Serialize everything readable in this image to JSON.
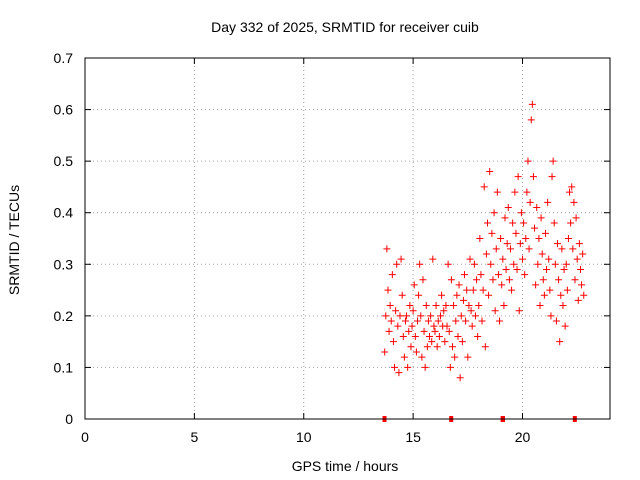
{
  "chart_data": {
    "type": "scatter",
    "title": "Day 332 of 2025, SRMTID for receiver cuib",
    "xlabel": "GPS time / hours",
    "ylabel": "SRMTID / TECUs",
    "xlim": [
      0,
      24
    ],
    "ylim": [
      0,
      0.7
    ],
    "x_ticks": [
      0,
      5,
      10,
      15,
      20
    ],
    "y_ticks": [
      0,
      0.1,
      0.2,
      0.3,
      0.4,
      0.5,
      0.6,
      0.7
    ],
    "x_tick_labels": [
      "0",
      "5",
      "10",
      "15",
      "20"
    ],
    "y_tick_labels": [
      "0",
      "0.1",
      "0.2",
      "0.3",
      "0.4",
      "0.5",
      "0.6",
      "0.7"
    ],
    "grid": true,
    "marker": "+",
    "color": "#ff0000",
    "series": [
      {
        "name": "SRMTID",
        "points": [
          [
            13.7,
            0.13
          ],
          [
            13.75,
            0.2
          ],
          [
            13.8,
            0.33
          ],
          [
            13.85,
            0.25
          ],
          [
            13.9,
            0.17
          ],
          [
            13.95,
            0.22
          ],
          [
            14.0,
            0.19
          ],
          [
            14.05,
            0.28
          ],
          [
            14.1,
            0.15
          ],
          [
            14.15,
            0.1
          ],
          [
            14.2,
            0.21
          ],
          [
            14.25,
            0.3
          ],
          [
            14.3,
            0.18
          ],
          [
            14.35,
            0.09
          ],
          [
            14.4,
            0.2
          ],
          [
            14.45,
            0.31
          ],
          [
            14.5,
            0.24
          ],
          [
            14.55,
            0.16
          ],
          [
            14.6,
            0.12
          ],
          [
            14.65,
            0.19
          ],
          [
            14.7,
            0.2
          ],
          [
            14.75,
            0.1
          ],
          [
            14.8,
            0.17
          ],
          [
            14.85,
            0.22
          ],
          [
            14.9,
            0.14
          ],
          [
            14.95,
            0.18
          ],
          [
            15.0,
            0.21
          ],
          [
            15.05,
            0.26
          ],
          [
            15.1,
            0.16
          ],
          [
            15.15,
            0.13
          ],
          [
            15.2,
            0.19
          ],
          [
            15.25,
            0.24
          ],
          [
            15.3,
            0.3
          ],
          [
            15.35,
            0.2
          ],
          [
            15.4,
            0.12
          ],
          [
            15.45,
            0.27
          ],
          [
            15.5,
            0.17
          ],
          [
            15.55,
            0.1
          ],
          [
            15.6,
            0.22
          ],
          [
            15.65,
            0.14
          ],
          [
            15.7,
            0.19
          ],
          [
            15.75,
            0.16
          ],
          [
            15.8,
            0.2
          ],
          [
            15.85,
            0.15
          ],
          [
            15.9,
            0.31
          ],
          [
            15.95,
            0.18
          ],
          [
            16.0,
            0.17
          ],
          [
            16.05,
            0.22
          ],
          [
            16.1,
            0.14
          ],
          [
            16.15,
            0.19
          ],
          [
            16.2,
            0.16
          ],
          [
            16.25,
            0.2
          ],
          [
            16.3,
            0.24
          ],
          [
            16.35,
            0.18
          ],
          [
            16.4,
            0.21
          ],
          [
            16.45,
            0.15
          ],
          [
            16.5,
            0.22
          ],
          [
            16.55,
            0.18
          ],
          [
            16.6,
            0.3
          ],
          [
            16.65,
            0.17
          ],
          [
            16.7,
            0.1
          ],
          [
            16.75,
            0.27
          ],
          [
            16.8,
            0.14
          ],
          [
            16.85,
            0.22
          ],
          [
            16.9,
            0.12
          ],
          [
            16.95,
            0.19
          ],
          [
            17.0,
            0.24
          ],
          [
            17.05,
            0.16
          ],
          [
            17.1,
            0.26
          ],
          [
            17.15,
            0.08
          ],
          [
            17.2,
            0.2
          ],
          [
            17.25,
            0.15
          ],
          [
            17.3,
            0.23
          ],
          [
            17.35,
            0.28
          ],
          [
            17.4,
            0.19
          ],
          [
            17.45,
            0.25
          ],
          [
            17.5,
            0.12
          ],
          [
            17.55,
            0.22
          ],
          [
            17.6,
            0.31
          ],
          [
            17.65,
            0.21
          ],
          [
            17.7,
            0.18
          ],
          [
            17.75,
            0.25
          ],
          [
            17.8,
            0.3
          ],
          [
            17.85,
            0.2
          ],
          [
            17.9,
            0.27
          ],
          [
            17.95,
            0.16
          ],
          [
            18.0,
            0.22
          ],
          [
            18.05,
            0.35
          ],
          [
            18.1,
            0.28
          ],
          [
            18.15,
            0.19
          ],
          [
            18.2,
            0.25
          ],
          [
            18.25,
            0.45
          ],
          [
            18.3,
            0.14
          ],
          [
            18.35,
            0.32
          ],
          [
            18.4,
            0.38
          ],
          [
            18.45,
            0.24
          ],
          [
            18.5,
            0.48
          ],
          [
            18.55,
            0.3
          ],
          [
            18.6,
            0.36
          ],
          [
            18.65,
            0.27
          ],
          [
            18.7,
            0.4
          ],
          [
            18.75,
            0.21
          ],
          [
            18.8,
            0.33
          ],
          [
            18.85,
            0.44
          ],
          [
            18.9,
            0.28
          ],
          [
            18.95,
            0.19
          ],
          [
            19.0,
            0.35
          ],
          [
            19.05,
            0.26
          ],
          [
            19.1,
            0.31
          ],
          [
            19.15,
            0.22
          ],
          [
            19.2,
            0.39
          ],
          [
            19.25,
            0.29
          ],
          [
            19.3,
            0.34
          ],
          [
            19.35,
            0.41
          ],
          [
            19.4,
            0.27
          ],
          [
            19.45,
            0.33
          ],
          [
            19.5,
            0.25
          ],
          [
            19.55,
            0.38
          ],
          [
            19.6,
            0.3
          ],
          [
            19.65,
            0.44
          ],
          [
            19.7,
            0.36
          ],
          [
            19.75,
            0.29
          ],
          [
            19.8,
            0.47
          ],
          [
            19.85,
            0.21
          ],
          [
            19.9,
            0.34
          ],
          [
            19.95,
            0.4
          ],
          [
            20.0,
            0.31
          ],
          [
            20.05,
            0.38
          ],
          [
            20.1,
            0.28
          ],
          [
            20.15,
            0.35
          ],
          [
            20.2,
            0.44
          ],
          [
            20.25,
            0.5
          ],
          [
            20.3,
            0.33
          ],
          [
            20.35,
            0.42
          ],
          [
            20.4,
            0.58
          ],
          [
            20.45,
            0.61
          ],
          [
            20.5,
            0.47
          ],
          [
            20.55,
            0.37
          ],
          [
            20.6,
            0.26
          ],
          [
            20.65,
            0.41
          ],
          [
            20.7,
            0.3
          ],
          [
            20.75,
            0.35
          ],
          [
            20.8,
            0.22
          ],
          [
            20.85,
            0.39
          ],
          [
            20.9,
            0.32
          ],
          [
            20.95,
            0.27
          ],
          [
            21.0,
            0.24
          ],
          [
            21.05,
            0.36
          ],
          [
            21.1,
            0.29
          ],
          [
            21.15,
            0.42
          ],
          [
            21.2,
            0.31
          ],
          [
            21.25,
            0.25
          ],
          [
            21.3,
            0.2
          ],
          [
            21.35,
            0.47
          ],
          [
            21.4,
            0.5
          ],
          [
            21.45,
            0.38
          ],
          [
            21.5,
            0.3
          ],
          [
            21.55,
            0.19
          ],
          [
            21.6,
            0.34
          ],
          [
            21.65,
            0.27
          ],
          [
            21.7,
            0.15
          ],
          [
            21.75,
            0.24
          ],
          [
            21.8,
            0.33
          ],
          [
            21.85,
            0.22
          ],
          [
            21.9,
            0.29
          ],
          [
            21.95,
            0.18
          ],
          [
            22.0,
            0.3
          ],
          [
            22.05,
            0.25
          ],
          [
            22.1,
            0.35
          ],
          [
            22.15,
            0.44
          ],
          [
            22.2,
            0.38
          ],
          [
            22.25,
            0.45
          ],
          [
            22.3,
            0.33
          ],
          [
            22.35,
            0.42
          ],
          [
            22.4,
            0.27
          ],
          [
            22.45,
            0.39
          ],
          [
            22.5,
            0.31
          ],
          [
            22.55,
            0.23
          ],
          [
            22.6,
            0.34
          ],
          [
            22.65,
            0.29
          ],
          [
            22.7,
            0.26
          ],
          [
            22.75,
            0.32
          ],
          [
            22.8,
            0.24
          ]
        ]
      }
    ],
    "baseline_markers": [
      {
        "x_start": 13.6,
        "x_end": 13.75
      },
      {
        "x_start": 16.65,
        "x_end": 16.8
      },
      {
        "x_start": 19.0,
        "x_end": 19.2
      },
      {
        "x_start": 22.3,
        "x_end": 22.45
      }
    ]
  }
}
